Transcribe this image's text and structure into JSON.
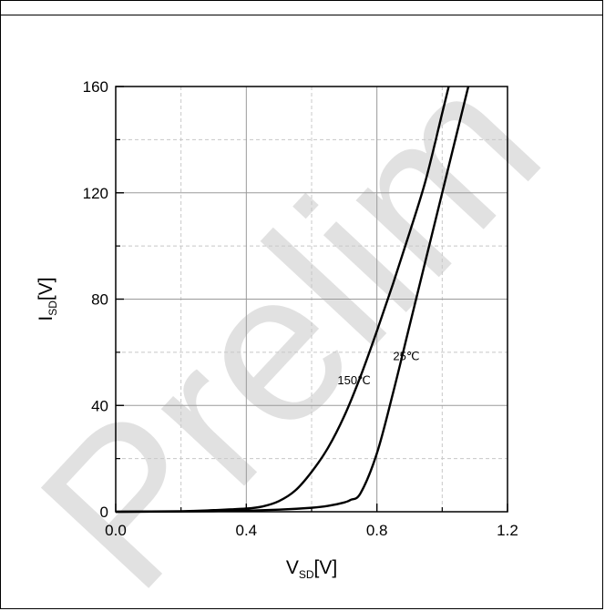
{
  "watermark": "Prelim",
  "chart_data": {
    "type": "line",
    "title": "",
    "xlabel": {
      "main": "V",
      "sub": "SD",
      "unit": "[V]"
    },
    "ylabel": {
      "main": "I",
      "sub": "SD",
      "unit": "[V]"
    },
    "xlim": [
      0.0,
      1.2
    ],
    "ylim": [
      0,
      160
    ],
    "xticks": [
      "0.0",
      "0.4",
      "0.8",
      "1.2"
    ],
    "yticks": [
      "0",
      "40",
      "80",
      "120",
      "160"
    ],
    "grid": true,
    "series": [
      {
        "name": "150℃",
        "x": [
          0.0,
          0.2,
          0.3,
          0.4,
          0.45,
          0.5,
          0.55,
          0.6,
          0.65,
          0.7,
          0.75,
          0.8,
          0.85,
          0.9,
          0.95,
          1.0,
          1.02
        ],
        "y": [
          0,
          0.2,
          0.6,
          1.2,
          2.0,
          4.0,
          8.0,
          15,
          24,
          36,
          51,
          68,
          86,
          105,
          125,
          150,
          160
        ]
      },
      {
        "name": "25℃",
        "x": [
          0.0,
          0.3,
          0.5,
          0.6,
          0.65,
          0.7,
          0.72,
          0.75,
          0.8,
          0.85,
          0.9,
          0.95,
          1.0,
          1.05,
          1.08
        ],
        "y": [
          0,
          0.2,
          0.8,
          1.5,
          2.2,
          3.5,
          4.5,
          7,
          22,
          45,
          70,
          95,
          120,
          145,
          160
        ]
      }
    ],
    "annotations": [
      {
        "text": "150℃",
        "x": 0.73,
        "y": 48
      },
      {
        "text": "25℃",
        "x": 0.89,
        "y": 57
      }
    ]
  }
}
